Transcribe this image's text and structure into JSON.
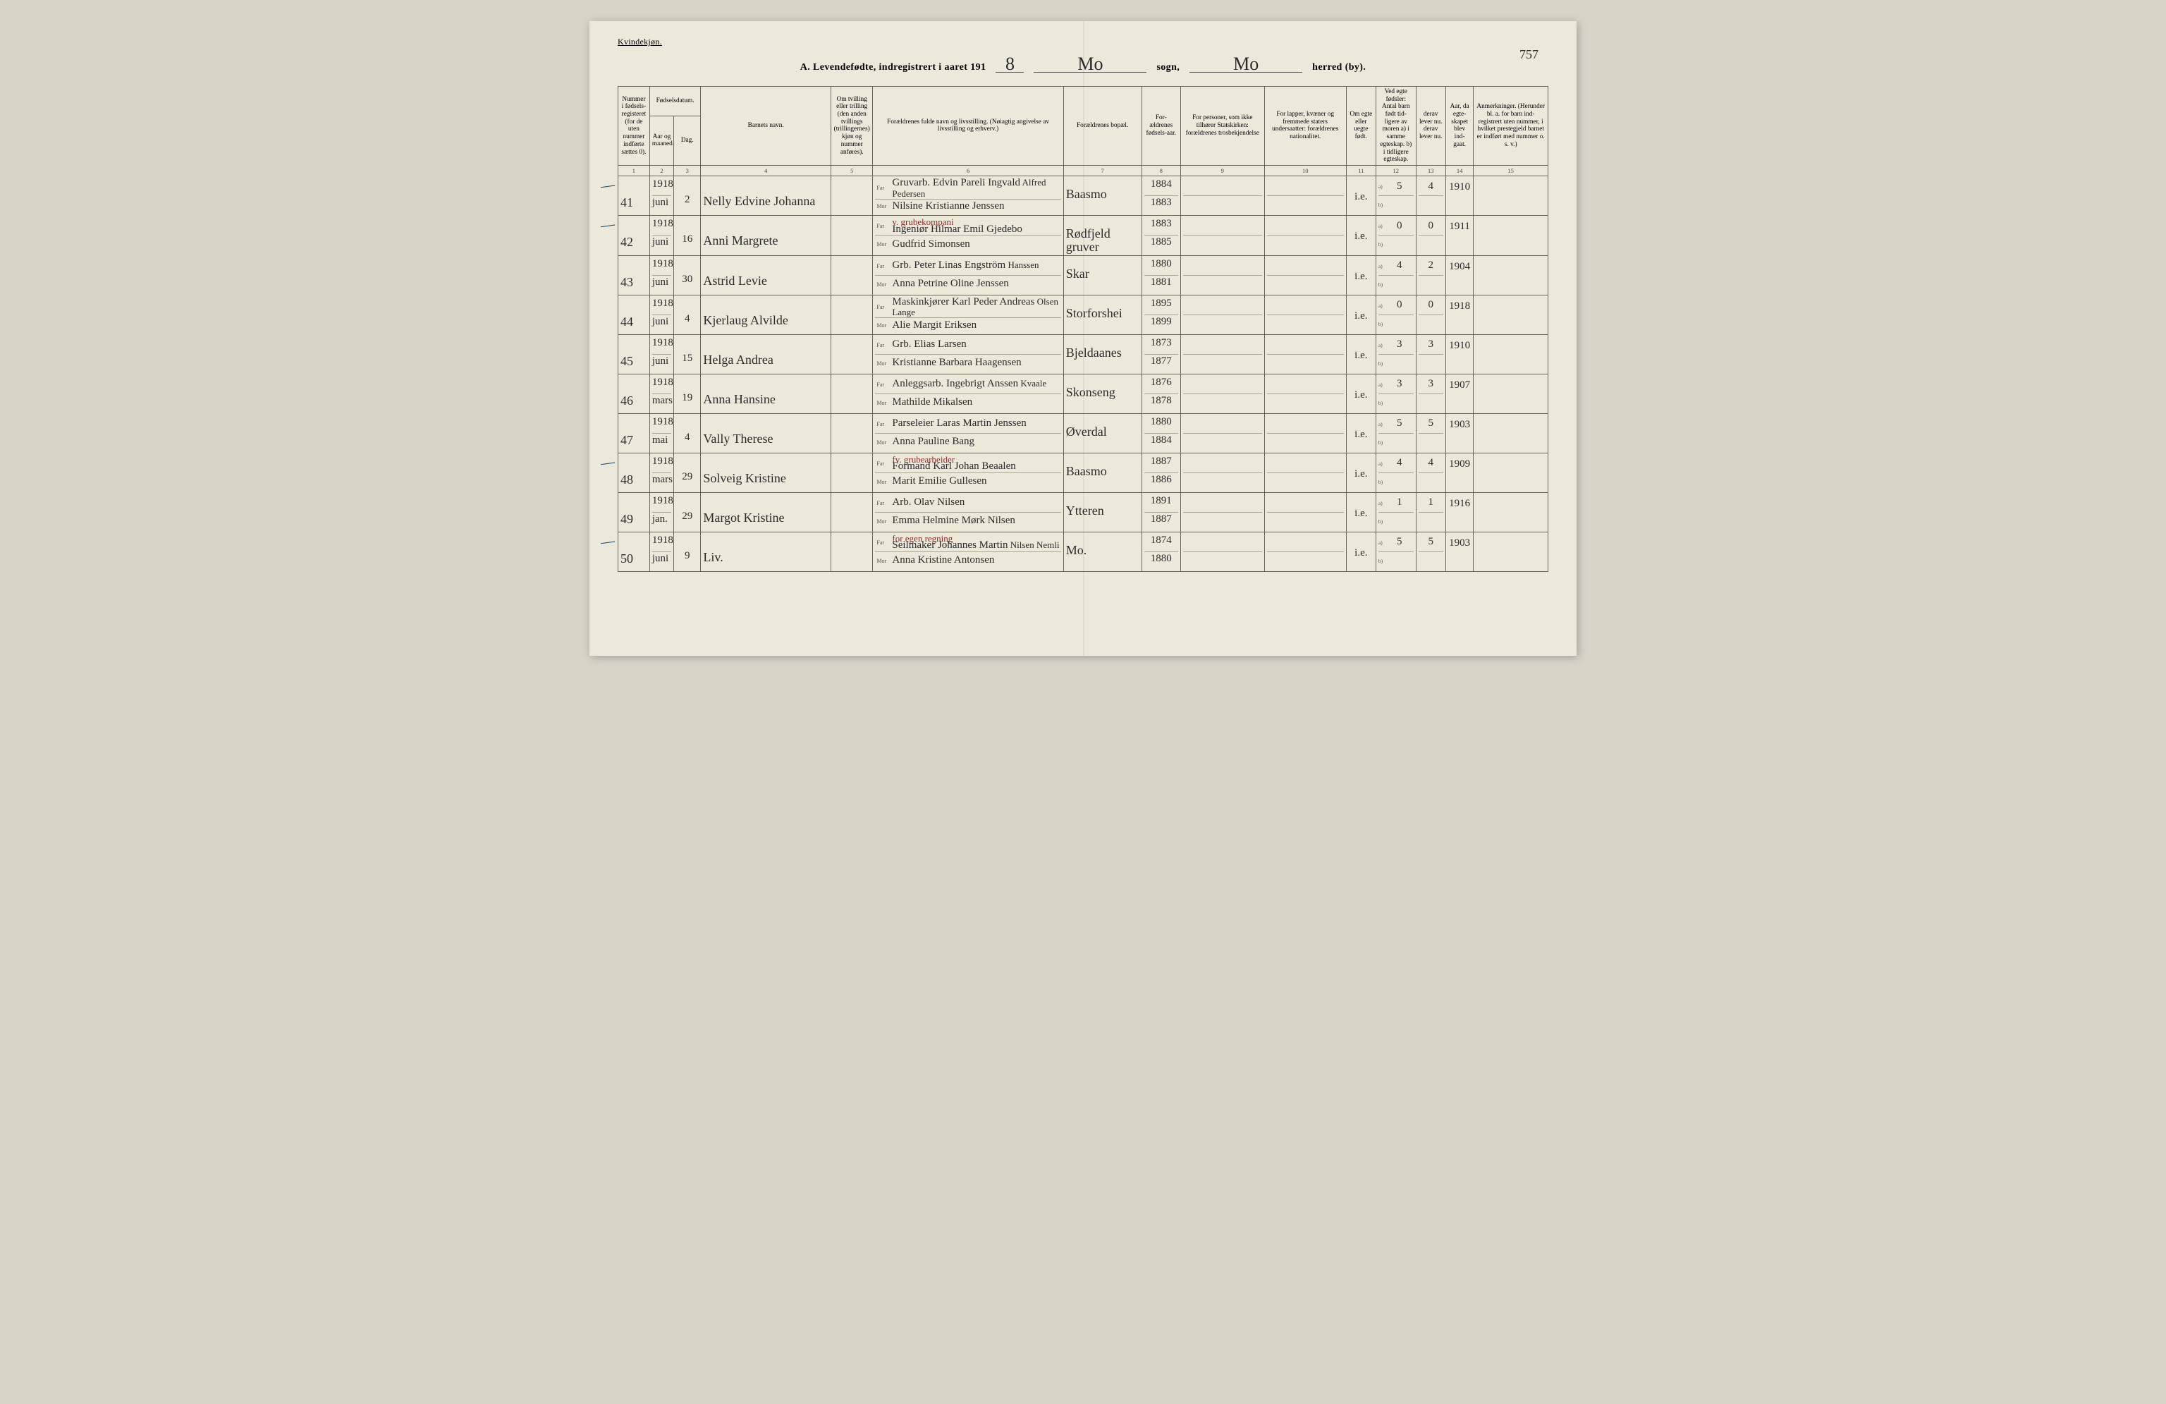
{
  "top_left_label": "Kvindekjøn.",
  "page_number": "757",
  "title": {
    "prefix": "A.  Levendefødte, indregistrert i aaret 191",
    "year_suffix": "8",
    "sogn_label": "sogn,",
    "sogn_value": "Mo",
    "herred_label": "herred (by).",
    "herred_value": "Mo"
  },
  "headers": {
    "c1": "Nummer i fødsels-registeret (for de uten nummer indførte sættes 0).",
    "c2_top": "Fødselsdatum.",
    "c2": "Aar og maaned.",
    "c3": "Dag.",
    "c4": "Barnets navn.",
    "c5": "Om tvilling eller trilling (den anden tvillings (trillingernes) kjøn og nummer anføres).",
    "c6": "Forældrenes fulde navn og livsstilling. (Nøiagtig angivelse av livsstilling og erhverv.)",
    "c7": "Forældrenes bopæl.",
    "c8": "For-ældrenes fødsels-aar.",
    "c9": "For personer, som ikke tilhører Statskirken: forældrenes trosbekjendelse",
    "c10": "For lapper, kvæner og fremmede staters undersaatter: forældrenes nationalitet.",
    "c11": "Om egte eller uegte født.",
    "c12": "Ved egte fødsler: Antal barn født tid-ligere av moren a) i samme egteskap. b) i tidligere egteskap.",
    "c13": "derav lever nu. derav lever nu.",
    "c14": "Aar, da egte-skapet blev ind-gaat.",
    "c15": "Anmerkninger. (Herunder bl. a. for barn ind-registrert uten nummer, i hvilket prestegjeld barnet er indført med nummer o. s. v.)"
  },
  "colnums": [
    "1",
    "2",
    "3",
    "4",
    "5",
    "6",
    "7",
    "8",
    "9",
    "10",
    "11",
    "12",
    "13",
    "14",
    "15"
  ],
  "labels": {
    "far": "Far",
    "mor": "Mor",
    "a": "a)",
    "b": "b)"
  },
  "rows": [
    {
      "num": "41",
      "year": "1918",
      "month": "juni",
      "day": "2",
      "child": "Nelly Edvine Johanna",
      "far": "Gruvarb. Edvin Pareli Ingvald",
      "far2": "Alfred Pedersen",
      "mor": "Nilsine Kristianne Jenssen",
      "bopael": "Baasmo",
      "f_far": "1884",
      "f_mor": "1883",
      "col9": "",
      "col10": "",
      "egte": "i.e.",
      "a12": "5",
      "a13": "4",
      "aar14": "1910",
      "anm": "",
      "tick": true
    },
    {
      "num": "42",
      "year": "1918",
      "month": "juni",
      "day": "16",
      "child": "Anni Margrete",
      "far": "Ingeniør Hilmar Emil Gjedebo",
      "far_note": "v. grubekompani",
      "mor": "Gudfrid Simonsen",
      "bopael": "Rødfjeld gruver",
      "f_far": "1883",
      "f_mor": "1885",
      "col9": "",
      "col10": "",
      "egte": "i.e.",
      "a12": "0",
      "a13": "0",
      "aar14": "1911",
      "anm": "",
      "tick": true
    },
    {
      "num": "43",
      "year": "1918",
      "month": "juni",
      "day": "30",
      "child": "Astrid Levie",
      "far": "Grb. Peter Linas Engström",
      "far2": "Hanssen",
      "mor": "Anna Petrine Oline Jenssen",
      "bopael": "Skar",
      "f_far": "1880",
      "f_mor": "1881",
      "col9": "",
      "col10": "",
      "egte": "i.e.",
      "a12": "4",
      "a13": "2",
      "aar14": "1904",
      "anm": ""
    },
    {
      "num": "44",
      "year": "1918",
      "month": "juni",
      "day": "4",
      "child": "Kjerlaug Alvilde",
      "far": "Maskinkjører Karl Peder Andreas",
      "far2": "Olsen Lange",
      "mor": "Alie Margit Eriksen",
      "bopael": "Storforshei",
      "f_far": "1895",
      "f_mor": "1899",
      "col9": "",
      "col10": "",
      "egte": "i.e.",
      "a12": "0",
      "a13": "0",
      "aar14": "1918",
      "anm": ""
    },
    {
      "num": "45",
      "year": "1918",
      "month": "juni",
      "day": "15",
      "child": "Helga Andrea",
      "far": "Grb. Elias Larsen",
      "mor": "Kristianne Barbara Haagensen",
      "bopael": "Bjeldaanes",
      "f_far": "1873",
      "f_mor": "1877",
      "col9": "",
      "col10": "",
      "egte": "i.e.",
      "a12": "3",
      "a13": "3",
      "aar14": "1910",
      "anm": ""
    },
    {
      "num": "46",
      "year": "1918",
      "month": "mars",
      "day": "19",
      "child": "Anna Hansine",
      "far": "Anleggsarb. Ingebrigt Anssen",
      "far2": "Kvaale",
      "mor": "Mathilde Mikalsen",
      "bopael": "Skonseng",
      "f_far": "1876",
      "f_mor": "1878",
      "col9": "",
      "col10": "",
      "egte": "i.e.",
      "a12": "3",
      "a13": "3",
      "aar14": "1907",
      "anm": ""
    },
    {
      "num": "47",
      "year": "1918",
      "month": "mai",
      "day": "4",
      "child": "Vally Therese",
      "far": "Parseleier Laras Martin Jenssen",
      "mor": "Anna Pauline Bang",
      "bopael": "Øverdal",
      "f_far": "1880",
      "f_mor": "1884",
      "col9": "",
      "col10": "",
      "egte": "i.e.",
      "a12": "5",
      "a13": "5",
      "aar14": "1903",
      "anm": ""
    },
    {
      "num": "48",
      "year": "1918",
      "month": "mars",
      "day": "29",
      "child": "Solveig Kristine",
      "far": "Formand Karl Johan Beaalen",
      "far_note": "fv. grubearbeider",
      "mor": "Marit Emilie Gullesen",
      "bopael": "Baasmo",
      "f_far": "1887",
      "f_mor": "1886",
      "col9": "",
      "col10": "",
      "egte": "i.e.",
      "a12": "4",
      "a13": "4",
      "aar14": "1909",
      "anm": "",
      "tick": true
    },
    {
      "num": "49",
      "year": "1918",
      "month": "jan.",
      "day": "29",
      "child": "Margot Kristine",
      "far": "Arb. Olav Nilsen",
      "mor": "Emma Helmine Mørk Nilsen",
      "bopael": "Ytteren",
      "f_far": "1891",
      "f_mor": "1887",
      "col9": "",
      "col10": "",
      "egte": "i.e.",
      "a12": "1",
      "a13": "1",
      "aar14": "1916",
      "anm": ""
    },
    {
      "num": "50",
      "year": "1918",
      "month": "juni",
      "day": "9",
      "child": "Liv.",
      "far": "Seilmaker Johannes Martin",
      "far_note": "for egen regning",
      "far2": "Nilsen Nemli",
      "mor": "Anna Kristine Antonsen",
      "bopael": "Mo.",
      "f_far": "1874",
      "f_mor": "1880",
      "col9": "",
      "col10": "",
      "egte": "i.e.",
      "a12": "5",
      "a13": "5",
      "aar14": "1903",
      "anm": "",
      "tick": true
    }
  ]
}
